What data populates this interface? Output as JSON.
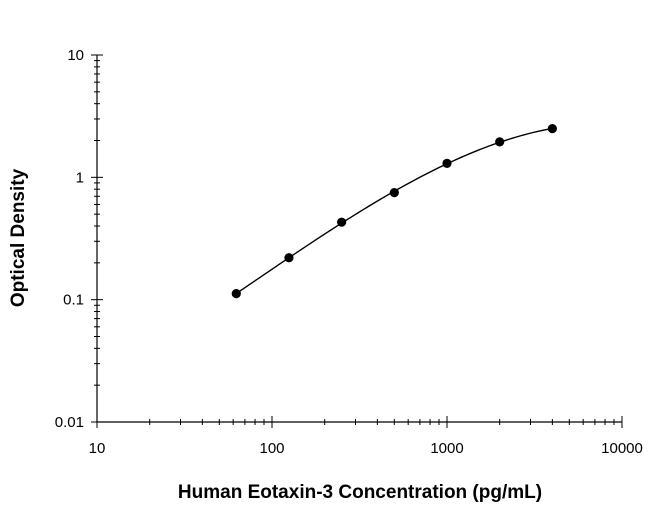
{
  "chart_data": {
    "type": "scatter",
    "title": "",
    "xlabel": "Human Eotaxin-3 Concentration (pg/mL)",
    "ylabel": "Optical Density",
    "x_scale": "log",
    "y_scale": "log",
    "xlim": [
      10,
      10000
    ],
    "ylim": [
      0.01,
      10
    ],
    "x_ticks": [
      "10",
      "100",
      "1000",
      "10000"
    ],
    "y_ticks": [
      "0.01",
      "0.1",
      "1",
      "10"
    ],
    "grid": false,
    "legend": "none",
    "series": [
      {
        "x": [
          62.5,
          125,
          250,
          500,
          1000,
          2000,
          4000
        ],
        "y": [
          0.112,
          0.22,
          0.43,
          0.75,
          1.3,
          1.95,
          2.5
        ],
        "marker": "circle",
        "fit_curve": true,
        "color": "#000000"
      }
    ]
  }
}
